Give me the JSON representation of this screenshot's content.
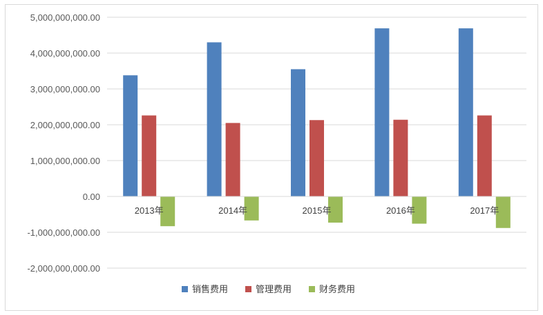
{
  "chart_data": {
    "type": "bar",
    "categories": [
      "2013年",
      "2014年",
      "2015年",
      "2016年",
      "2017年"
    ],
    "series": [
      {
        "name": "销售费用",
        "color": "#4f81bd",
        "values": [
          3380000000,
          4300000000,
          3550000000,
          4690000000,
          4690000000
        ]
      },
      {
        "name": "管理费用",
        "color": "#c0504d",
        "values": [
          2260000000,
          2050000000,
          2130000000,
          2140000000,
          2260000000
        ]
      },
      {
        "name": "财务费用",
        "color": "#9bbb59",
        "values": [
          -830000000,
          -670000000,
          -730000000,
          -760000000,
          -880000000
        ]
      }
    ],
    "ylim": [
      -2000000000,
      5000000000
    ],
    "yticks": [
      5000000000,
      4000000000,
      3000000000,
      2000000000,
      1000000000,
      0,
      -1000000000,
      -2000000000
    ],
    "ytick_labels": [
      "5,000,000,000.00",
      "4,000,000,000.00",
      "3,000,000,000.00",
      "2,000,000,000.00",
      "1,000,000,000.00",
      "0.00",
      "-1,000,000,000.00",
      "-2,000,000,000.00"
    ],
    "grid": true,
    "legend": "bottom"
  }
}
